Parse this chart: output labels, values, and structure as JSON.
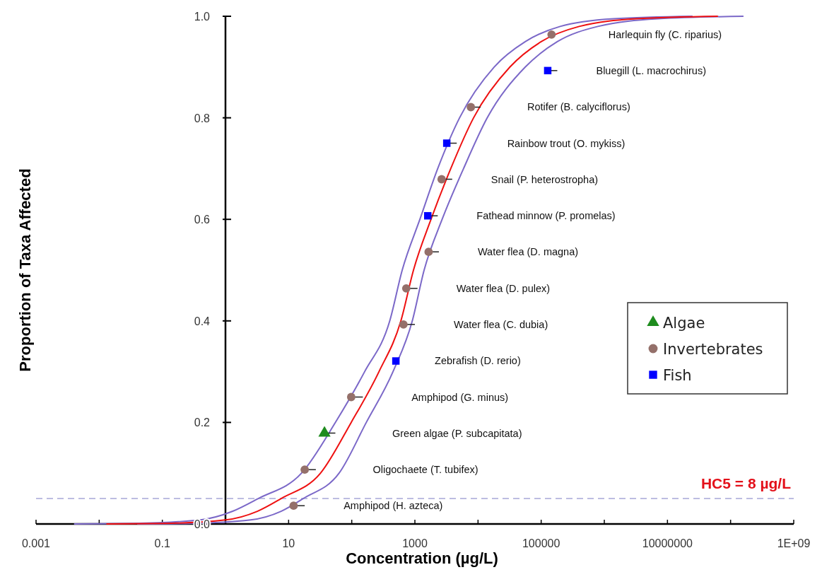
{
  "chart_data": {
    "type": "scatter",
    "xlabel": "Concentration (µg/L)",
    "ylabel": "Proportion of Taxa Affected",
    "log": "x",
    "legend": "right",
    "xlim": [
      0.001,
      1000000000
    ],
    "xticks": [
      0.001,
      {
        "value": 0.01,
        "label": null
      },
      0.1,
      {
        "value": 1,
        "label": null
      },
      10,
      {
        "value": 100,
        "label": null
      },
      1000,
      {
        "value": 10000,
        "label": null
      },
      100000,
      {
        "value": 1000000,
        "label": null
      },
      10000000,
      {
        "value": 100000000,
        "label": null
      },
      {
        "value": 1000000000,
        "label": "1E+09"
      }
    ],
    "ylim": [
      0,
      1
    ],
    "yticks": [
      {
        "value": 0,
        "label": "0.0"
      },
      0.2,
      0.4,
      0.6,
      0.8,
      {
        "value": 1,
        "label": "1.0"
      }
    ],
    "series": [
      {
        "type": "line",
        "color": "#7b68c8",
        "x": [
          0.004,
          0.035,
          0.4,
          1.3,
          3.3,
          16,
          55,
          160,
          400,
          630,
          1200,
          2300,
          5100,
          18000,
          56000,
          200000,
          1400000,
          25000000
        ],
        "values": [
          0,
          0.001,
          0.008,
          0.025,
          0.05,
          0.1,
          0.2,
          0.3,
          0.4,
          0.5,
          0.6,
          0.7,
          0.8,
          0.9,
          0.95,
          0.98,
          0.995,
          1
        ]
      },
      {
        "type": "line",
        "color": "#7b68c8",
        "x": [
          0.04,
          0.28,
          2.5,
          7.6,
          17,
          63,
          170,
          450,
          910,
          1400,
          2700,
          5900,
          14000,
          56000,
          180000,
          790000,
          7100000,
          160000000
        ],
        "values": [
          0,
          0.001,
          0.008,
          0.025,
          0.05,
          0.1,
          0.2,
          0.3,
          0.4,
          0.5,
          0.6,
          0.7,
          0.8,
          0.9,
          0.95,
          0.98,
          0.995,
          1
        ]
      },
      {
        "type": "line",
        "color": "#ee1111",
        "x": [
          0.013,
          0.1,
          1,
          3.2,
          7.6,
          32,
          98,
          270,
          600,
          950,
          1800,
          3700,
          8500,
          32000,
          100000,
          400000,
          3200000,
          63000000
        ],
        "values": [
          0,
          0.001,
          0.008,
          0.025,
          0.05,
          0.1,
          0.2,
          0.3,
          0.4,
          0.5,
          0.6,
          0.7,
          0.8,
          0.9,
          0.95,
          0.98,
          0.995,
          1
        ]
      },
      {
        "type": "scatter",
        "name": "Algae",
        "marker": "triangle",
        "color": "#1e8c1e",
        "x": [
          37
        ],
        "values": [
          0.179
        ],
        "xerrors": [
          [
            37,
            55
          ]
        ]
      },
      {
        "type": "scatter",
        "name": "Invertebrates",
        "marker": "circle",
        "color": "#94706a",
        "x": [
          12,
          18,
          98,
          660,
          730,
          1650,
          2650,
          7700,
          146000
        ],
        "values": [
          0.036,
          0.107,
          0.25,
          0.393,
          0.464,
          0.536,
          0.679,
          0.821,
          0.964
        ],
        "xerrors": [
          [
            12,
            18
          ],
          [
            18,
            27
          ],
          [
            98,
            150
          ],
          [
            660,
            1000
          ],
          [
            730,
            1100
          ],
          [
            1650,
            2400
          ],
          [
            2650,
            3900
          ],
          [
            7700,
            11000
          ],
          null
        ]
      },
      {
        "type": "scatter",
        "name": "Fish",
        "marker": "square",
        "color": "#0000ff",
        "x": [
          500,
          1600,
          3200,
          127000
        ],
        "values": [
          0.321,
          0.607,
          0.75,
          0.893
        ],
        "xerrors": [
          null,
          [
            1600,
            2300
          ],
          [
            3200,
            4600
          ],
          [
            127000,
            180000
          ]
        ]
      }
    ],
    "ref_lines": [
      {
        "axis": "y",
        "value": 0.05,
        "label": "HC5 = 8 µg/L",
        "color": "#a6a6d8",
        "line_style": "dashed"
      }
    ],
    "annotations": [
      "Amphipod (H. azteca)",
      "Oligochaete (T. tubifex)",
      "Green algae (P. subcapitata)",
      "Amphipod (G. minus)",
      "Zebrafish (D. rerio)",
      "Water flea (C. dubia)",
      "Water flea (D. pulex)",
      "Water flea (D. magna)",
      "Fathead minnow (P. promelas)",
      "Snail (P. heterostropha)",
      "Rainbow trout (O. mykiss)",
      "Rotifer (B. calyciflorus)",
      "Bluegill (L. macrochirus)",
      "Harlequin fly (C. riparius)"
    ]
  }
}
